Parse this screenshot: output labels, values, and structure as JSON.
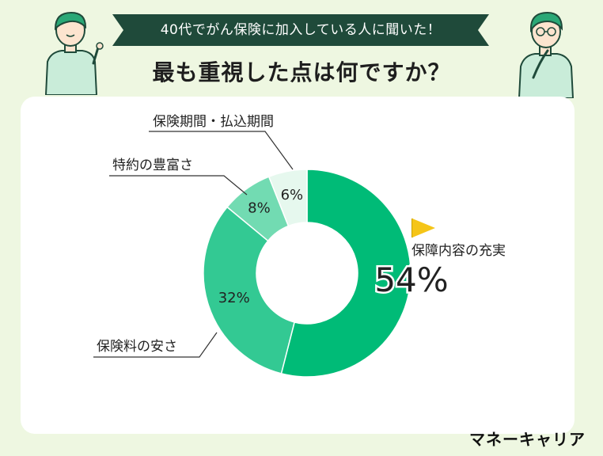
{
  "header": {
    "subtitle": "40代でがん保険に加入している人に聞いた！",
    "title": "最も重視した点は何ですか？"
  },
  "brand": "マネーキャリア",
  "colors": {
    "background": "#eef7e1",
    "banner": "#1f4a3a",
    "slice_main": "#00bb77",
    "slice_second": "#33c993",
    "slice_third": "#72dbb2",
    "slice_fourth": "#e6f8ee",
    "flag": "#f5c518"
  },
  "chart_data": {
    "type": "pie",
    "categories": [
      "保障内容の充実",
      "保険料の安さ",
      "特約の豊富さ",
      "保険期間・払込期間"
    ],
    "values": [
      54,
      32,
      8,
      6
    ],
    "value_labels": [
      "54%",
      "32%",
      "8%",
      "6%"
    ],
    "title": "最も重視した点は何ですか？"
  }
}
